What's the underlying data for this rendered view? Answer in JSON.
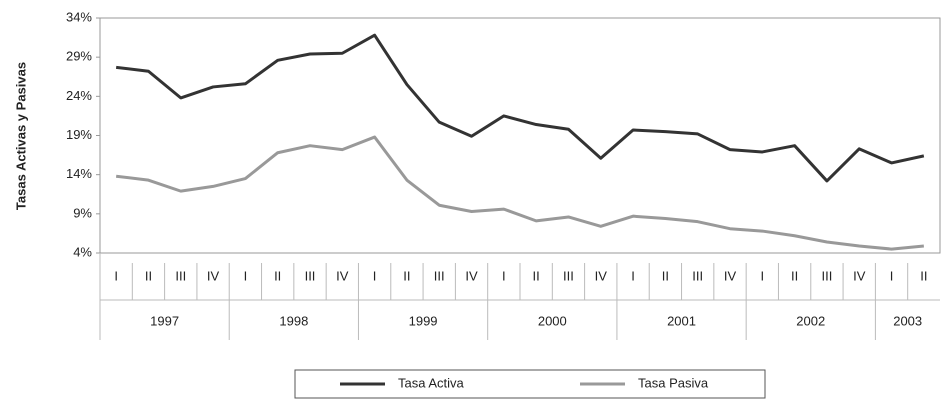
{
  "chart_data": {
    "type": "line",
    "y_label": "Tasas Activas y Pasivas",
    "groups": [
      {
        "label": "1997",
        "categories": [
          "I",
          "II",
          "III",
          "IV"
        ]
      },
      {
        "label": "1998",
        "categories": [
          "I",
          "II",
          "III",
          "IV"
        ]
      },
      {
        "label": "1999",
        "categories": [
          "I",
          "II",
          "III",
          "IV"
        ]
      },
      {
        "label": "2000",
        "categories": [
          "I",
          "II",
          "III",
          "IV"
        ]
      },
      {
        "label": "2001",
        "categories": [
          "I",
          "II",
          "III",
          "IV"
        ]
      },
      {
        "label": "2002",
        "categories": [
          "I",
          "II",
          "III",
          "IV"
        ]
      },
      {
        "label": "2003",
        "categories": [
          "I",
          "II"
        ]
      }
    ],
    "series": [
      {
        "name": "Tasa Activa",
        "color": "#333333",
        "values": [
          27.7,
          27.2,
          23.8,
          25.2,
          25.6,
          28.6,
          29.4,
          29.5,
          31.8,
          25.5,
          20.7,
          18.9,
          21.5,
          20.4,
          19.8,
          16.1,
          19.7,
          19.5,
          19.2,
          17.2,
          16.9,
          17.7,
          13.2,
          17.3,
          15.5,
          16.4
        ]
      },
      {
        "name": "Tasa Pasiva",
        "color": "#999999",
        "values": [
          13.8,
          13.3,
          11.9,
          12.5,
          13.5,
          16.8,
          17.7,
          17.2,
          18.8,
          13.3,
          10.1,
          9.3,
          9.6,
          8.1,
          8.6,
          7.4,
          8.7,
          8.4,
          8.0,
          7.1,
          6.8,
          6.2,
          5.4,
          4.9,
          4.5,
          4.9
        ]
      }
    ],
    "ylim": [
      4,
      34
    ],
    "yticks": [
      {
        "value": 4,
        "label": "4%"
      },
      {
        "value": 9,
        "label": "9%"
      },
      {
        "value": 14,
        "label": "14%"
      },
      {
        "value": 19,
        "label": "19%"
      },
      {
        "value": 24,
        "label": "24%"
      },
      {
        "value": 29,
        "label": "29%"
      },
      {
        "value": 34,
        "label": "34%"
      }
    ],
    "legend": "bottom"
  }
}
